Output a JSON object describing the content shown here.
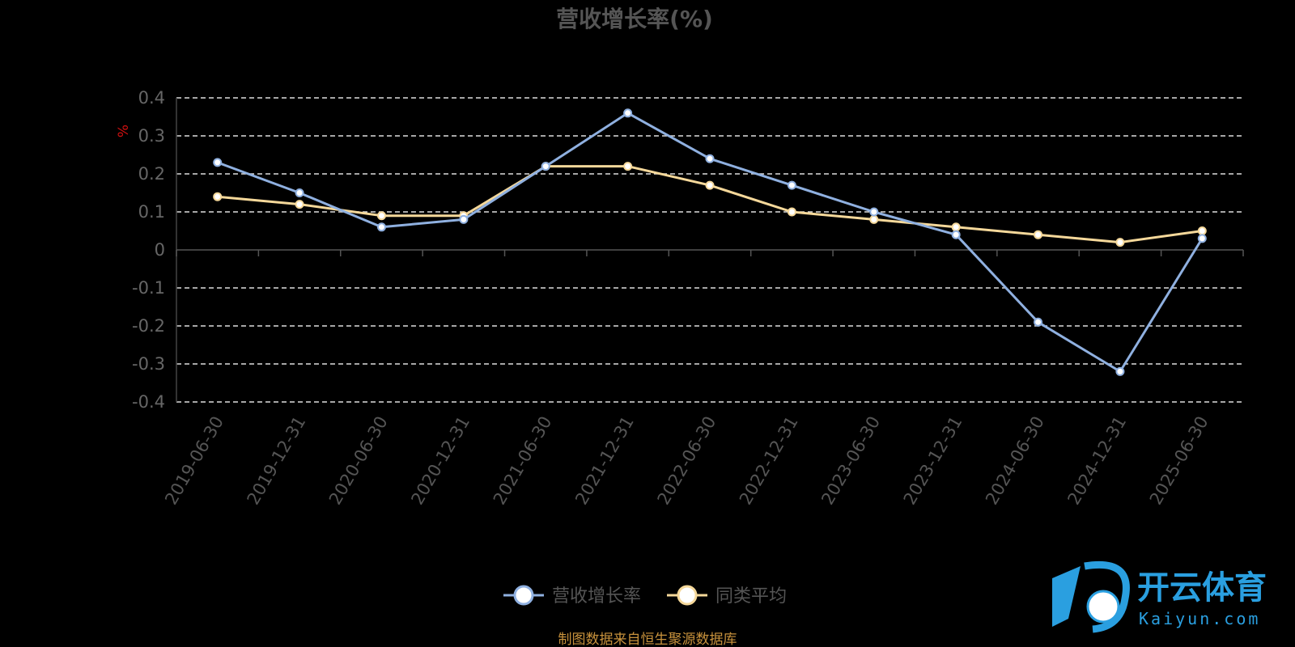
{
  "chart_data": {
    "type": "line",
    "title": "营收增长率(%)",
    "ylabel": "%",
    "ylim": [
      -0.4,
      0.4
    ],
    "yticks": [
      "0.4",
      "0.3",
      "0.2",
      "0.1",
      "0",
      "-0.1",
      "-0.2",
      "-0.3",
      "-0.4"
    ],
    "grid": true,
    "legend_position": "bottom",
    "categories": [
      "2019-06-30",
      "2019-12-31",
      "2020-06-30",
      "2020-12-31",
      "2021-06-30",
      "2021-12-31",
      "2022-06-30",
      "2022-12-31",
      "2023-06-30",
      "2023-12-31",
      "2024-06-30",
      "2024-12-31",
      "2025-06-30"
    ],
    "series": [
      {
        "name": "营收增长率",
        "color": "#8fb0e0",
        "values": [
          0.23,
          0.15,
          0.06,
          0.08,
          0.22,
          0.36,
          0.24,
          0.17,
          0.1,
          0.04,
          -0.19,
          -0.32,
          0.03
        ]
      },
      {
        "name": "同类平均",
        "color": "#f5d89a",
        "values": [
          0.14,
          0.12,
          0.09,
          0.09,
          0.22,
          0.22,
          0.17,
          0.1,
          0.08,
          0.06,
          0.04,
          0.02,
          0.05
        ]
      }
    ]
  },
  "source_note": "制图数据来自恒生聚源数据库",
  "watermark": {
    "name_cn": "开云体育",
    "domain": "Kaiyun.com"
  }
}
